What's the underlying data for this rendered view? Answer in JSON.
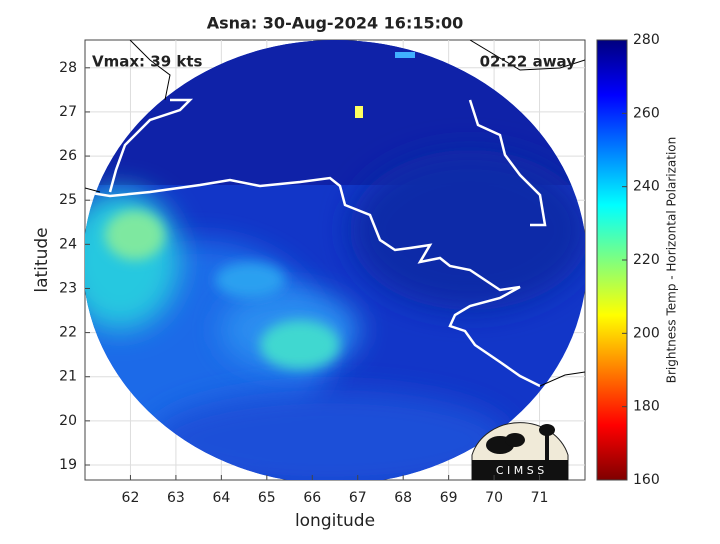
{
  "chart_data": {
    "type": "image-map",
    "title": "Asna: 30-Aug-2024 16:15:00",
    "xlabel": "longitude",
    "ylabel": "latitude",
    "annotations": [
      "Vmax: 39 kts",
      "02:22 away"
    ],
    "xlim": [
      61,
      72
    ],
    "xticks": [
      62,
      63,
      64,
      65,
      66,
      67,
      68,
      69,
      70,
      71
    ],
    "ylim": [
      18.66,
      28.63
    ],
    "yticks": [
      19,
      20,
      21,
      22,
      23,
      24,
      25,
      26,
      27,
      28
    ],
    "grid": true,
    "colorbar": {
      "label": "Brightness Temp - Horizontal Polarization",
      "lim": [
        160,
        280
      ],
      "ticks": [
        160,
        180,
        200,
        220,
        240,
        260,
        280
      ],
      "colormap": [
        "#7f0000",
        "#ff0000",
        "#ff7f00",
        "#ffff00",
        "#7fff7f",
        "#00ffff",
        "#007fff",
        "#0000ff",
        "#00007f"
      ]
    },
    "logo": "C I M S S"
  }
}
